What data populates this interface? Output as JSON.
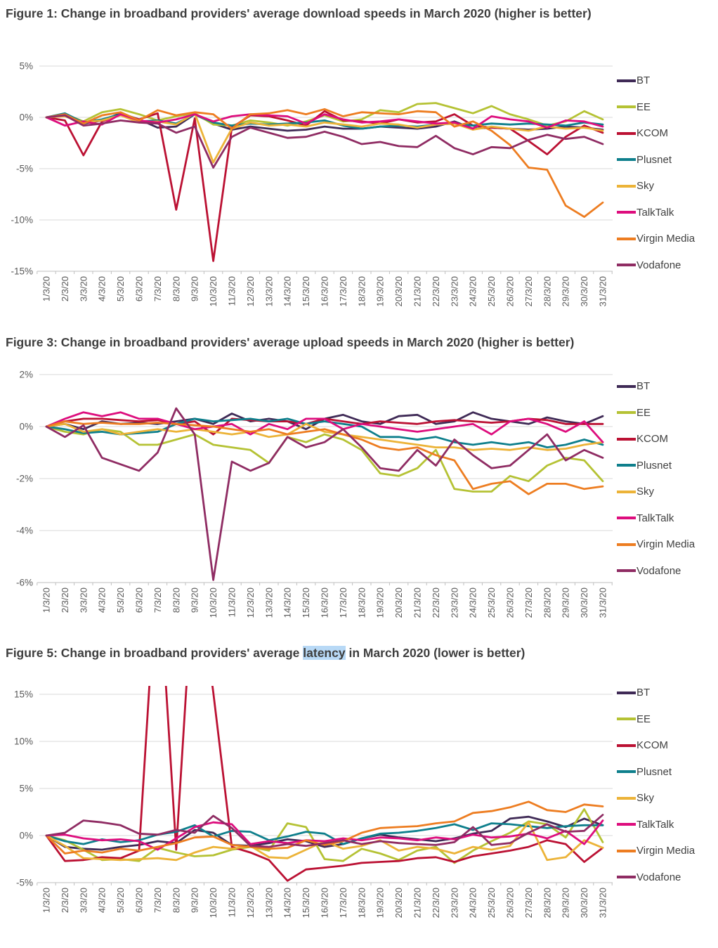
{
  "page": {
    "background": "#ffffff"
  },
  "colors": {
    "BT": "#3f2a56",
    "EE": "#b5c234",
    "KCOM": "#bb1133",
    "Plusnet": "#0e7f8c",
    "Sky": "#ecb338",
    "TalkTalk": "#dd0d7d",
    "Virgin Media": "#ed7d21",
    "Vodafone": "#8f2c63",
    "grid": "#d9d9d9",
    "axis": "#bfbfbf",
    "tick_text": "#595959",
    "title_text": "#3e3e3e",
    "highlight": "#b8d9f6"
  },
  "chart_data": [
    {
      "type": "line",
      "title_parts": [
        {
          "text": "Figure 1: Change in broadband providers' average download speeds in March 2020 (higher is better)",
          "highlight": false
        }
      ],
      "legend_position": "right",
      "grid": "horizontal",
      "ylim": [
        -15.6,
        5.35
      ],
      "yticks": [
        {
          "label": "5%",
          "value": 5
        },
        {
          "label": "0%",
          "value": 0
        },
        {
          "label": "-5%",
          "value": -5
        },
        {
          "label": "-10%",
          "value": -10
        },
        {
          "label": "-15%",
          "value": -15
        }
      ],
      "x_categories": [
        "1/3/20",
        "2/3/20",
        "3/3/20",
        "4/3/20",
        "5/3/20",
        "6/3/20",
        "7/3/20",
        "8/3/20",
        "9/3/20",
        "10/3/20",
        "11/3/20",
        "12/3/20",
        "13/3/20",
        "14/3/20",
        "15/3/20",
        "16/3/20",
        "17/3/20",
        "18/3/20",
        "19/3/20",
        "20/3/20",
        "21/3/20",
        "22/3/20",
        "23/3/20",
        "24/3/20",
        "25/3/20",
        "26/3/20",
        "27/3/20",
        "28/3/20",
        "29/3/20",
        "30/3/20",
        "31/3/20"
      ],
      "series": [
        {
          "name": "BT",
          "values": [
            0,
            0.2,
            -0.6,
            -0.3,
            0.4,
            -0.2,
            -1.0,
            -0.9,
            0.3,
            -0.6,
            -1.2,
            -0.9,
            -1.1,
            -1.3,
            -1.2,
            -0.9,
            -1.1,
            -1.1,
            -0.9,
            -1.0,
            -1.1,
            -0.9,
            -0.4,
            -1.1,
            -1.0,
            -1.1,
            -1.2,
            -1.1,
            -0.9,
            -1.0,
            -1.2
          ]
        },
        {
          "name": "EE",
          "values": [
            0,
            0.3,
            -0.4,
            0.5,
            0.8,
            0.3,
            -0.3,
            0.1,
            0.4,
            -0.7,
            -0.8,
            -0.3,
            -0.5,
            -0.8,
            -0.4,
            0.2,
            -0.4,
            -0.2,
            0.7,
            0.5,
            1.3,
            1.4,
            0.9,
            0.4,
            1.1,
            0.3,
            -0.2,
            -0.8,
            -0.4,
            0.6,
            -0.2
          ]
        },
        {
          "name": "KCOM",
          "values": [
            0,
            -0.3,
            -3.7,
            -0.4,
            0.3,
            -0.2,
            0.4,
            -9.0,
            -0.1,
            -14.0,
            -1.0,
            0.2,
            0.1,
            -0.3,
            -0.8,
            0.6,
            -0.3,
            -0.4,
            -0.6,
            -0.2,
            -0.5,
            -0.4,
            0.3,
            -0.8,
            -1.0,
            -1.1,
            -2.3,
            -3.6,
            -1.9,
            -0.8,
            -1.5
          ]
        },
        {
          "name": "Plusnet",
          "values": [
            0,
            0.4,
            -0.5,
            -0.2,
            0.3,
            -0.4,
            -0.3,
            -0.6,
            0.3,
            -0.5,
            -0.8,
            -0.6,
            -0.7,
            -0.6,
            -0.5,
            -0.3,
            -0.8,
            -1.1,
            -0.9,
            -0.8,
            -0.9,
            -0.7,
            -0.6,
            -0.8,
            -0.6,
            -0.7,
            -0.6,
            -0.7,
            -0.8,
            -0.5,
            -0.7
          ]
        },
        {
          "name": "Sky",
          "values": [
            0,
            0.1,
            -0.5,
            -0.3,
            0.2,
            -0.5,
            -0.4,
            -0.7,
            0.4,
            -4.4,
            -1.1,
            -0.5,
            -0.8,
            -0.7,
            -0.9,
            -0.5,
            -0.7,
            -0.9,
            -0.6,
            -0.7,
            -1.0,
            -0.7,
            -0.6,
            -1.2,
            -0.9,
            -1.1,
            -1.3,
            -0.9,
            -1.1,
            -1.0,
            -1.3
          ]
        },
        {
          "name": "TalkTalk",
          "values": [
            0,
            -0.8,
            -0.4,
            -0.7,
            0.3,
            -0.3,
            -0.5,
            -0.2,
            0.3,
            -0.4,
            0.1,
            0.3,
            0.2,
            0.1,
            -0.6,
            0.3,
            -0.2,
            -0.5,
            -0.4,
            -0.2,
            -0.4,
            -0.6,
            -0.5,
            -1.1,
            0.1,
            -0.2,
            -0.4,
            -1.0,
            -0.3,
            -0.4,
            -0.9
          ]
        },
        {
          "name": "Virgin Media",
          "values": [
            0,
            0.3,
            -0.6,
            0.2,
            0.5,
            -0.3,
            0.7,
            0.2,
            0.5,
            0.3,
            -1.1,
            0.3,
            0.4,
            0.7,
            0.3,
            0.8,
            0.1,
            0.5,
            0.4,
            0.3,
            0.6,
            0.5,
            -0.9,
            -0.4,
            -1.3,
            -2.7,
            -4.9,
            -5.1,
            -8.6,
            -9.7,
            -8.3
          ]
        },
        {
          "name": "Vodafone",
          "values": [
            0,
            0.2,
            -0.8,
            -0.6,
            -0.3,
            -0.5,
            -0.6,
            -1.5,
            -0.9,
            -4.9,
            -1.9,
            -1.0,
            -1.5,
            -2.0,
            -1.9,
            -1.4,
            -1.9,
            -2.6,
            -2.4,
            -2.8,
            -2.9,
            -1.8,
            -3.0,
            -3.6,
            -2.9,
            -3.0,
            -2.2,
            -1.7,
            -2.1,
            -1.9,
            -2.6
          ]
        }
      ]
    },
    {
      "type": "line",
      "title_parts": [
        {
          "text": "Figure 3: Change in broadband providers' average upload speeds in March 2020 (higher is better)",
          "highlight": false
        }
      ],
      "legend_position": "right",
      "grid": "horizontal",
      "ylim": [
        -6.2,
        2.2
      ],
      "yticks": [
        {
          "label": "2%",
          "value": 2
        },
        {
          "label": "0%",
          "value": 0
        },
        {
          "label": "-2%",
          "value": -2
        },
        {
          "label": "-4%",
          "value": -4
        },
        {
          "label": "-6%",
          "value": -6
        }
      ],
      "x_categories": [
        "1/3/20",
        "2/3/20",
        "3/3/20",
        "4/3/20",
        "5/3/20",
        "6/3/20",
        "7/3/20",
        "8/3/20",
        "9/3/20",
        "10/3/20",
        "11/3/20",
        "12/3/20",
        "13/3/20",
        "14/3/20",
        "15/3/20",
        "16/3/20",
        "17/3/20",
        "18/3/20",
        "19/3/20",
        "20/3/20",
        "21/3/20",
        "22/3/20",
        "23/3/20",
        "24/3/20",
        "25/3/20",
        "26/3/20",
        "27/3/20",
        "28/3/20",
        "29/3/20",
        "30/3/20",
        "31/3/20"
      ],
      "series": [
        {
          "name": "BT",
          "values": [
            0,
            0.1,
            -0.1,
            0.2,
            0.1,
            0.15,
            0.1,
            0.2,
            0.3,
            0.1,
            0.5,
            0.2,
            0.3,
            0.2,
            -0.1,
            0.3,
            0.45,
            0.2,
            0.1,
            0.4,
            0.45,
            0.1,
            0.2,
            0.55,
            0.3,
            0.2,
            0.1,
            0.35,
            0.2,
            0.1,
            0.4
          ]
        },
        {
          "name": "EE",
          "values": [
            0,
            -0.2,
            -0.3,
            -0.1,
            -0.2,
            -0.7,
            -0.7,
            -0.5,
            -0.3,
            -0.7,
            -0.8,
            -0.9,
            -1.4,
            -0.4,
            -0.6,
            -0.3,
            -0.5,
            -0.9,
            -1.8,
            -1.9,
            -1.6,
            -0.9,
            -2.4,
            -2.5,
            -2.5,
            -1.9,
            -2.1,
            -1.5,
            -1.2,
            -1.3,
            -2.1
          ]
        },
        {
          "name": "KCOM",
          "values": [
            0,
            0.2,
            0.3,
            0.3,
            0.25,
            0.2,
            0.25,
            0.1,
            0.2,
            -0.3,
            0.3,
            0.25,
            0.2,
            0.2,
            0.1,
            0.3,
            0.2,
            0.1,
            0.2,
            0.15,
            0.1,
            0.2,
            0.25,
            0.2,
            0.15,
            0.2,
            0.3,
            0.25,
            0.1,
            0.1,
            0.1
          ]
        },
        {
          "name": "Plusnet",
          "values": [
            0,
            -0.1,
            -0.25,
            -0.2,
            -0.3,
            -0.25,
            -0.2,
            0.1,
            0.3,
            0.2,
            0.25,
            0.3,
            0.2,
            0.3,
            0.1,
            0.2,
            0.1,
            0,
            -0.4,
            -0.4,
            -0.5,
            -0.4,
            -0.6,
            -0.7,
            -0.6,
            -0.7,
            -0.6,
            -0.8,
            -0.7,
            -0.5,
            -0.7
          ]
        },
        {
          "name": "Sky",
          "values": [
            0,
            0.1,
            -0.2,
            -0.1,
            -0.3,
            -0.2,
            -0.1,
            -0.2,
            -0.1,
            -0.2,
            -0.3,
            -0.2,
            -0.4,
            -0.3,
            0.1,
            -0.2,
            -0.3,
            -0.4,
            -0.5,
            -0.6,
            -0.7,
            -0.8,
            -0.8,
            -0.9,
            -0.85,
            -0.9,
            -0.8,
            -0.9,
            -0.85,
            -0.7,
            -0.6
          ]
        },
        {
          "name": "TalkTalk",
          "values": [
            0,
            0.3,
            0.55,
            0.4,
            0.55,
            0.3,
            0.3,
            0.1,
            -0.1,
            0,
            0.1,
            -0.3,
            0.1,
            -0.1,
            0.3,
            0.3,
            -0.1,
            0.1,
            0,
            -0.1,
            -0.2,
            -0.1,
            0,
            0.1,
            -0.3,
            0.2,
            0.3,
            0.1,
            -0.2,
            0.2,
            -0.6
          ]
        },
        {
          "name": "Virgin Media",
          "values": [
            0,
            0.2,
            0.1,
            0.15,
            0.1,
            0.1,
            0.15,
            0.1,
            0.05,
            0,
            -0.1,
            -0.2,
            -0.1,
            -0.3,
            -0.2,
            -0.1,
            -0.3,
            -0.5,
            -0.8,
            -0.9,
            -0.8,
            -1.1,
            -1.3,
            -2.4,
            -2.2,
            -2.1,
            -2.6,
            -2.2,
            -2.2,
            -2.4,
            -2.3
          ]
        },
        {
          "name": "Vodafone",
          "values": [
            0,
            -0.4,
            0.05,
            -1.2,
            -1.45,
            -1.7,
            -1.0,
            0.7,
            -0.3,
            -5.9,
            -1.35,
            -1.7,
            -1.4,
            -0.4,
            -0.8,
            -0.6,
            -0.1,
            -0.8,
            -1.6,
            -1.7,
            -0.9,
            -1.5,
            -0.5,
            -1.1,
            -1.6,
            -1.5,
            -0.9,
            -0.3,
            -1.3,
            -0.9,
            -1.2
          ]
        }
      ]
    },
    {
      "type": "line",
      "title_parts": [
        {
          "text": "Figure 5: Change in broadband providers' average ",
          "highlight": false
        },
        {
          "text": "latency",
          "highlight": true
        },
        {
          "text": " in March 2020 (lower is better)",
          "highlight": false
        }
      ],
      "legend_position": "right",
      "grid": "horizontal",
      "ylim": [
        -5.3,
        15.9
      ],
      "yticks": [
        {
          "label": "15%",
          "value": 15
        },
        {
          "label": "10%",
          "value": 10
        },
        {
          "label": "5%",
          "value": 5
        },
        {
          "label": "0%",
          "value": 0
        },
        {
          "label": "-5%",
          "value": -5
        }
      ],
      "x_categories": [
        "1/3/20",
        "2/3/20",
        "3/3/20",
        "4/3/20",
        "5/3/20",
        "6/3/20",
        "7/3/20",
        "8/3/20",
        "9/3/20",
        "10/3/20",
        "11/3/20",
        "12/3/20",
        "13/3/20",
        "14/3/20",
        "15/3/20",
        "16/3/20",
        "17/3/20",
        "18/3/20",
        "19/3/20",
        "20/3/20",
        "21/3/20",
        "22/3/20",
        "23/3/20",
        "24/3/20",
        "25/3/20",
        "26/3/20",
        "27/3/20",
        "28/3/20",
        "29/3/20",
        "30/3/20",
        "31/3/20"
      ],
      "series": [
        {
          "name": "BT",
          "values": [
            0,
            -1.2,
            -1.4,
            -1.5,
            -1.2,
            -1.0,
            -0.6,
            -0.8,
            0.6,
            0.3,
            -1.0,
            -1.1,
            -0.8,
            -0.4,
            -0.6,
            -1.2,
            -0.9,
            -0.3,
            0.1,
            -0.2,
            -0.4,
            -0.6,
            -0.3,
            0.2,
            0.5,
            1.8,
            2.0,
            1.5,
            0.9,
            1.8,
            1.1
          ]
        },
        {
          "name": "EE",
          "values": [
            0,
            -0.5,
            -1.5,
            -2.6,
            -2.5,
            -2.7,
            -1.3,
            -1.8,
            -2.2,
            -2.1,
            -1.5,
            -1.2,
            -1.6,
            1.3,
            0.9,
            -2.5,
            -2.7,
            -1.4,
            -1.9,
            -2.6,
            -1.6,
            -1.2,
            -2.9,
            -1.6,
            -0.6,
            0.3,
            1.5,
            1.2,
            -0.2,
            2.8,
            -0.7
          ]
        },
        {
          "name": "KCOM",
          "values": [
            0,
            -2.7,
            -2.6,
            -2.3,
            -2.4,
            -1.6,
            30,
            -1.5,
            30,
            15.2,
            -1.2,
            -1.8,
            -2.6,
            -4.8,
            -3.6,
            -3.4,
            -3.2,
            -2.9,
            -2.8,
            -2.7,
            -2.4,
            -2.3,
            -2.8,
            -2.2,
            -1.9,
            -1.6,
            -1.2,
            -0.5,
            -0.9,
            -2.8,
            -1.3
          ]
        },
        {
          "name": "Plusnet",
          "values": [
            0,
            -0.6,
            -0.9,
            -0.4,
            -0.7,
            -0.5,
            0.1,
            0.4,
            1.1,
            -0.1,
            0.5,
            0.4,
            -0.5,
            -0.1,
            0.4,
            0.2,
            -0.9,
            -0.3,
            0.2,
            0.3,
            0.5,
            0.8,
            1.2,
            0.6,
            1.3,
            1.2,
            1.0,
            0.8,
            1.0,
            1.1,
            1.1
          ]
        },
        {
          "name": "Sky",
          "values": [
            0,
            -1.1,
            -2.4,
            -2.5,
            -2.6,
            -2.5,
            -2.4,
            -2.6,
            -1.8,
            -1.2,
            -1.4,
            -1.1,
            -2.3,
            -2.4,
            -1.5,
            -0.6,
            -1.4,
            -1.1,
            -0.5,
            -1.6,
            -1.2,
            -1.4,
            -1.9,
            -1.2,
            -1.5,
            -1.1,
            1.4,
            -2.6,
            -2.3,
            -0.5,
            -1.3
          ]
        },
        {
          "name": "TalkTalk",
          "values": [
            0,
            0.1,
            -0.3,
            -0.5,
            -0.4,
            -0.6,
            -1.5,
            -0.3,
            0.9,
            1.4,
            1.2,
            -0.9,
            -0.6,
            -0.8,
            -0.5,
            -0.6,
            -0.3,
            -0.5,
            -0.2,
            -0.3,
            -0.5,
            -0.2,
            -0.4,
            0.1,
            -0.2,
            -0.1,
            0.2,
            -0.3,
            0.5,
            -0.9,
            1.6
          ]
        },
        {
          "name": "Virgin Media",
          "values": [
            0,
            -1.9,
            -1.6,
            -1.8,
            -1.4,
            -1.6,
            -1.2,
            -0.8,
            -0.2,
            -0.1,
            -1.0,
            -1.2,
            -1.4,
            -1.3,
            -0.5,
            -1.0,
            -0.6,
            0.3,
            0.8,
            0.9,
            1.0,
            1.3,
            1.5,
            2.4,
            2.6,
            3.0,
            3.6,
            2.7,
            2.5,
            3.3,
            3.1
          ]
        },
        {
          "name": "Vodafone",
          "values": [
            0,
            0.3,
            1.6,
            1.4,
            1.1,
            0.2,
            0.1,
            0.6,
            0.3,
            2.1,
            0.8,
            -1.1,
            -1.2,
            -0.9,
            -1.1,
            -0.8,
            -0.5,
            -0.9,
            -0.6,
            -0.8,
            -0.9,
            -1.0,
            -0.7,
            0.9,
            -1.0,
            -0.8,
            0.3,
            1.2,
            0.4,
            0.5,
            2.2
          ]
        }
      ]
    }
  ]
}
